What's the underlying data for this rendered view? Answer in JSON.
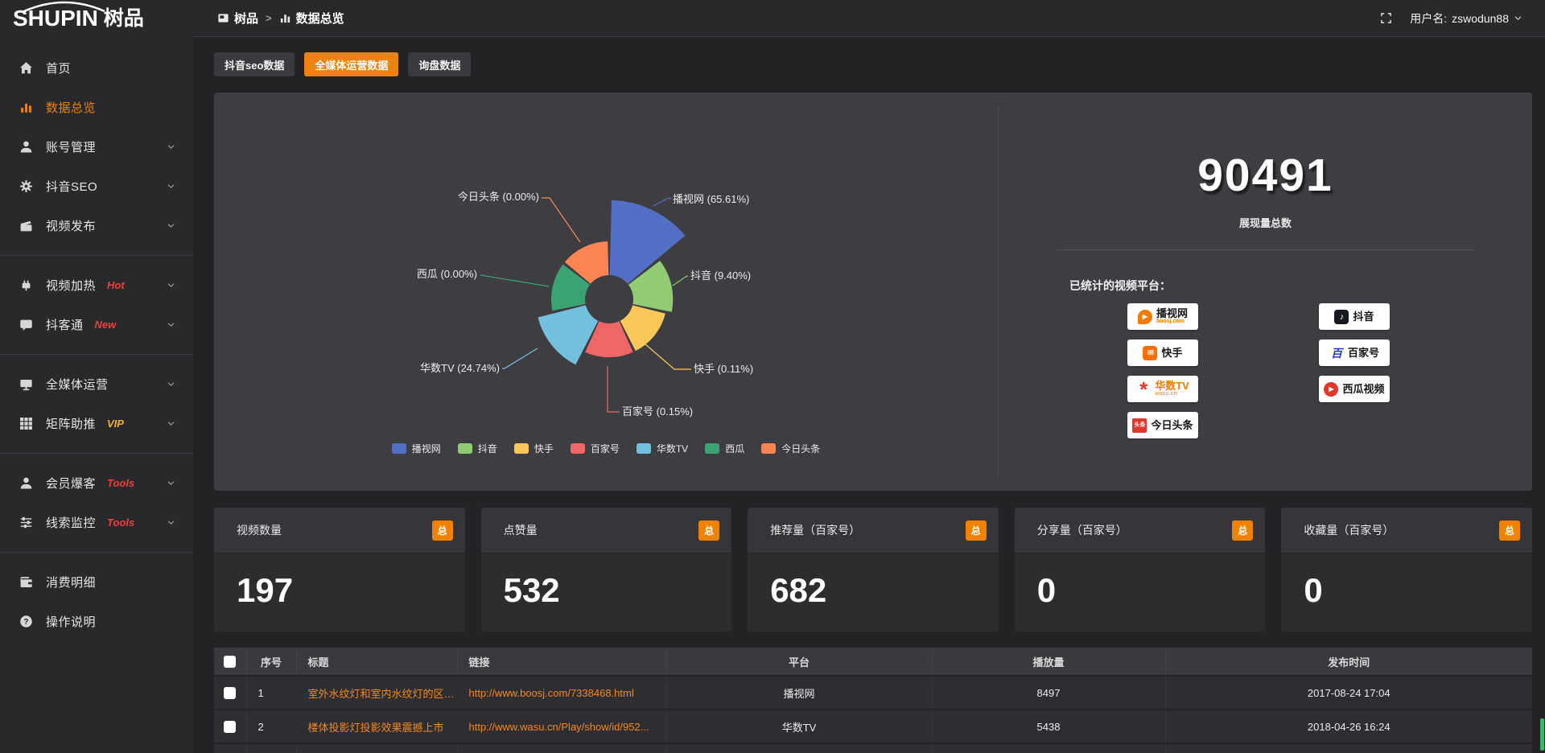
{
  "topbar": {
    "logo_en": "SHUPIN",
    "logo_cn": "树品",
    "breadcrumb": {
      "root": "树品",
      "separator": ">",
      "current": "数据总览"
    },
    "username_label": "用户名:",
    "username": "zswodun88"
  },
  "sidebar": {
    "items": [
      {
        "label": "首页",
        "icon": "home"
      },
      {
        "label": "数据总览",
        "icon": "chart",
        "active": true
      },
      {
        "label": "账号管理",
        "icon": "user",
        "chevron": true
      },
      {
        "label": "抖音SEO",
        "icon": "gear",
        "chevron": true
      },
      {
        "label": "视频发布",
        "icon": "clapper",
        "chevron": true,
        "divider_after": true
      },
      {
        "label": "视频加热",
        "icon": "plug",
        "badge": "Hot",
        "badge_color": "#f23d3d",
        "chevron": true
      },
      {
        "label": "抖客通",
        "icon": "chat",
        "badge": "New",
        "badge_color": "#f23d3d",
        "chevron": true,
        "divider_after": true
      },
      {
        "label": "全媒体运营",
        "icon": "monitor",
        "chevron": true
      },
      {
        "label": "矩阵助推",
        "icon": "grid",
        "badge": "VIP",
        "badge_color": "#efb32a",
        "chevron": true,
        "divider_after": true
      },
      {
        "label": "会员爆客",
        "icon": "user",
        "badge": "Tools",
        "badge_color": "#f23d3d",
        "chevron": true
      },
      {
        "label": "线索监控",
        "icon": "sliders",
        "badge": "Tools",
        "badge_color": "#f23d3d",
        "chevron": true,
        "divider_after": true
      },
      {
        "label": "消费明细",
        "icon": "wallet"
      },
      {
        "label": "操作说明",
        "icon": "question"
      }
    ]
  },
  "tabs": [
    {
      "label": "抖音seo数据",
      "active": false
    },
    {
      "label": "全媒体运营数据",
      "active": true
    },
    {
      "label": "询盘数据",
      "active": false
    }
  ],
  "chart_data": {
    "type": "pie",
    "subtype": "rose",
    "title": "",
    "legend_position": "bottom",
    "label_format": "{name} ({pct}%)",
    "series": [
      {
        "name": "播视网",
        "pct": 65.61,
        "color": "#5470c6"
      },
      {
        "name": "抖音",
        "pct": 9.4,
        "color": "#91cc75"
      },
      {
        "name": "快手",
        "pct": 0.11,
        "color": "#fac858"
      },
      {
        "name": "百家号",
        "pct": 0.15,
        "color": "#ee6666"
      },
      {
        "name": "华数TV",
        "pct": 24.74,
        "color": "#73c0de"
      },
      {
        "name": "西瓜",
        "pct": 0.0,
        "color": "#3ba272"
      },
      {
        "name": "今日头条",
        "pct": 0.0,
        "color": "#fc8452"
      }
    ]
  },
  "summary": {
    "total_value": "90491",
    "total_label": "展现量总数",
    "platforms_title": "已统计的视频平台：",
    "platform_columns": [
      [
        {
          "name": "播视网",
          "sub": "boosj.com",
          "sub_color": "#f57c00",
          "logo": "boosj",
          "logo_text": "▶"
        },
        {
          "name": "快手",
          "logo": "kuaishou",
          "logo_text": "88"
        },
        {
          "name": "华数TV",
          "name_color": "#f07c00",
          "sub": "wasu.cn",
          "sub_color": "#f0a050",
          "logo": "wasu",
          "logo_text": "*"
        },
        {
          "name": "今日头条",
          "logo": "toutiao",
          "logo_text": "头条"
        }
      ],
      [
        {
          "name": "抖音",
          "logo": "douyin",
          "logo_text": "♪"
        },
        {
          "name": "百家号",
          "logo": "baijia",
          "logo_text": "百"
        },
        {
          "name": "西瓜视频",
          "logo": "xigua",
          "logo_text": "▶"
        }
      ]
    ]
  },
  "stat_cards": [
    {
      "title": "视频数量",
      "badge": "总",
      "value": "197"
    },
    {
      "title": "点赞量",
      "badge": "总",
      "value": "532"
    },
    {
      "title": "推荐量（百家号）",
      "badge": "总",
      "value": "682"
    },
    {
      "title": "分享量（百家号）",
      "badge": "总",
      "value": "0"
    },
    {
      "title": "收藏量（百家号）",
      "badge": "总",
      "value": "0"
    }
  ],
  "table": {
    "headers": [
      "序号",
      "标题",
      "链接",
      "平台",
      "播放量",
      "发布时间"
    ],
    "rows": [
      {
        "no": "1",
        "title": "室外水纹灯和室内水纹灯的区别和简介",
        "link": "http://www.boosj.com/7338468.html",
        "platform": "播视网",
        "plays": "8497",
        "time": "2017-08-24 17:04"
      },
      {
        "no": "2",
        "title": "楼体投影灯投影效果震撼上市",
        "link": "http://www.wasu.cn/Play/show/id/952...",
        "platform": "华数TV",
        "plays": "5438",
        "time": "2018-04-26 16:24"
      }
    ]
  },
  "colors": {
    "accent": "#f08200",
    "link": "#f4881e",
    "hot_badge": "#f23d3d",
    "vip_badge": "#efb32a",
    "scroll_thumb": "#3eb370"
  }
}
